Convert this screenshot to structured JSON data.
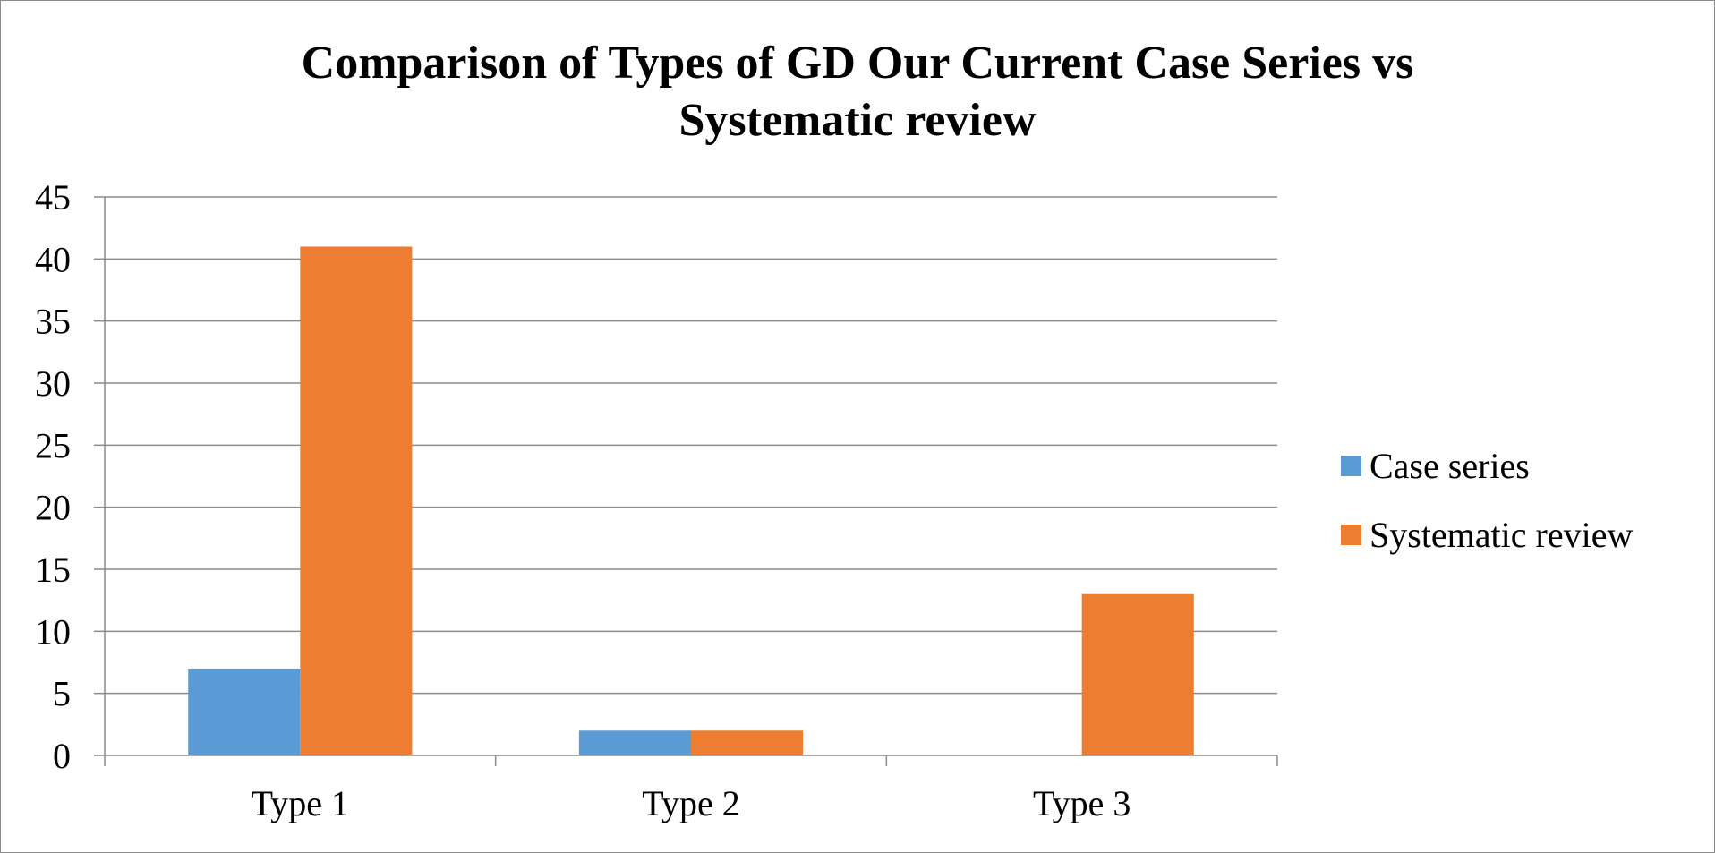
{
  "chart_data": {
    "type": "bar",
    "title_lines": [
      "Comparison of Types of GD Our Current Case Series vs",
      "Systematic review"
    ],
    "categories": [
      "Type 1",
      "Type 2",
      "Type 3"
    ],
    "series": [
      {
        "name": "Case series",
        "values": [
          7,
          2,
          0
        ],
        "color": "#5b9bd5"
      },
      {
        "name": "Systematic review",
        "values": [
          41,
          2,
          13
        ],
        "color": "#ed7d31"
      }
    ],
    "ylim": [
      0,
      45
    ],
    "yticks": [
      0,
      5,
      10,
      15,
      20,
      25,
      30,
      35,
      40,
      45
    ],
    "grid": true,
    "legend_position": "right"
  }
}
